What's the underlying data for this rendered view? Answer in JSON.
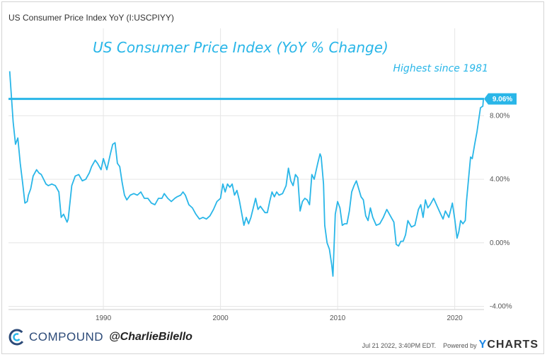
{
  "series_title": "US Consumer Price Index YoY (I:USCPIYY)",
  "footer": {
    "brand": "COMPOUND",
    "handle": "@CharlieBilello",
    "timestamp": "Jul 21 2022, 3:40PM EDT.",
    "powered_by": "Powered by",
    "ycharts_y": "Y",
    "ycharts_rest": "CHARTS"
  },
  "colors": {
    "line": "#29b6e8",
    "annotation": "#29b6e8",
    "axis_text": "#555555",
    "grid": "#e6e6e6",
    "brand": "#2c4a78"
  },
  "chart_data": {
    "type": "line",
    "title": "US Consumer Price Index (YoY % Change)",
    "annotation": "Highest since 1981",
    "reference_line": {
      "y": 9.06,
      "label": "9.06%"
    },
    "xlim": [
      1981.9,
      2022.5
    ],
    "ylim": [
      -4.2,
      13.5
    ],
    "x_ticks": [
      1990,
      2000,
      2010,
      2020
    ],
    "x_tick_labels": [
      "1990",
      "2000",
      "2010",
      "2020"
    ],
    "y_ticks": [
      8,
      4,
      0,
      -4
    ],
    "y_tick_labels": [
      "8.00%",
      "4.00%",
      "0.00%",
      "-4.00%"
    ],
    "grid": true,
    "series": [
      {
        "x": [
          1982.0,
          1982.3,
          1982.5,
          1982.7,
          1982.9,
          1983.1,
          1983.3,
          1983.5,
          1983.6,
          1983.8,
          1984.0,
          1984.3,
          1984.5,
          1984.7,
          1984.9,
          1985.1,
          1985.3,
          1985.6,
          1985.9,
          1986.2,
          1986.4,
          1986.6,
          1986.9,
          1987.0,
          1987.3,
          1987.6,
          1987.9,
          1988.2,
          1988.5,
          1988.8,
          1989.0,
          1989.3,
          1989.5,
          1989.8,
          1990.0,
          1990.3,
          1990.6,
          1990.8,
          1991.0,
          1991.2,
          1991.4,
          1991.6,
          1991.8,
          1992.0,
          1992.3,
          1992.6,
          1992.9,
          1993.2,
          1993.5,
          1993.8,
          1994.1,
          1994.4,
          1994.7,
          1995.0,
          1995.2,
          1995.5,
          1995.8,
          1996.1,
          1996.3,
          1996.6,
          1996.8,
          1997.0,
          1997.3,
          1997.6,
          1997.9,
          1998.2,
          1998.5,
          1998.8,
          1999.1,
          1999.4,
          1999.7,
          2000.0,
          2000.2,
          2000.4,
          2000.6,
          2000.8,
          2001.0,
          2001.2,
          2001.4,
          2001.6,
          2001.8,
          2002.0,
          2002.2,
          2002.4,
          2002.6,
          2002.8,
          2003.0,
          2003.2,
          2003.4,
          2003.6,
          2003.8,
          2004.0,
          2004.2,
          2004.4,
          2004.6,
          2004.8,
          2005.0,
          2005.3,
          2005.6,
          2005.8,
          2006.0,
          2006.2,
          2006.4,
          2006.6,
          2006.8,
          2007.0,
          2007.2,
          2007.4,
          2007.6,
          2007.8,
          2008.0,
          2008.3,
          2008.5,
          2008.6,
          2008.8,
          2008.9,
          2009.1,
          2009.3,
          2009.5,
          2009.6,
          2009.8,
          2010.0,
          2010.2,
          2010.4,
          2010.6,
          2010.8,
          2011.0,
          2011.2,
          2011.4,
          2011.6,
          2011.8,
          2012.0,
          2012.2,
          2012.4,
          2012.6,
          2012.8,
          2013.0,
          2013.3,
          2013.6,
          2013.9,
          2014.2,
          2014.5,
          2014.8,
          2015.0,
          2015.2,
          2015.4,
          2015.6,
          2015.8,
          2016.0,
          2016.3,
          2016.6,
          2016.9,
          2017.1,
          2017.3,
          2017.5,
          2017.7,
          2017.9,
          2018.2,
          2018.5,
          2018.8,
          2019.0,
          2019.2,
          2019.5,
          2019.8,
          2020.0,
          2020.2,
          2020.35,
          2020.5,
          2020.7,
          2020.9,
          2021.0,
          2021.2,
          2021.35,
          2021.5,
          2021.7,
          2021.9,
          2022.0,
          2022.2,
          2022.4,
          2022.45
        ],
        "values": [
          10.8,
          7.6,
          6.2,
          6.6,
          5.0,
          3.8,
          2.5,
          2.6,
          3.0,
          3.4,
          4.2,
          4.6,
          4.4,
          4.3,
          4.0,
          3.7,
          3.6,
          3.7,
          3.6,
          3.2,
          1.6,
          1.8,
          1.3,
          1.5,
          3.6,
          4.2,
          4.3,
          3.9,
          4.0,
          4.4,
          4.8,
          5.2,
          5.0,
          4.6,
          5.3,
          4.6,
          5.6,
          6.2,
          6.3,
          5.0,
          4.8,
          3.8,
          3.0,
          2.7,
          3.0,
          3.1,
          3.0,
          3.2,
          2.8,
          2.8,
          2.5,
          2.4,
          2.8,
          2.8,
          3.1,
          2.8,
          2.6,
          2.8,
          2.9,
          3.0,
          3.2,
          3.0,
          2.4,
          2.2,
          1.8,
          1.5,
          1.6,
          1.5,
          1.7,
          2.1,
          2.6,
          2.8,
          3.7,
          3.2,
          3.7,
          3.5,
          3.7,
          3.0,
          3.3,
          2.7,
          1.9,
          1.1,
          1.6,
          1.2,
          1.6,
          2.2,
          2.8,
          2.1,
          2.3,
          2.1,
          1.9,
          1.9,
          2.6,
          3.2,
          2.9,
          3.2,
          3.0,
          3.1,
          3.6,
          4.7,
          3.9,
          3.6,
          4.3,
          4.1,
          2.0,
          2.6,
          2.8,
          2.7,
          2.4,
          4.3,
          4.0,
          5.0,
          5.6,
          5.4,
          3.7,
          1.1,
          0.0,
          -0.4,
          -1.4,
          -2.1,
          1.8,
          2.6,
          2.2,
          1.1,
          1.2,
          1.2,
          2.0,
          3.2,
          3.6,
          3.9,
          3.4,
          2.9,
          2.7,
          1.7,
          1.4,
          2.2,
          1.6,
          1.1,
          1.2,
          1.6,
          2.1,
          1.7,
          1.3,
          -0.1,
          -0.2,
          0.1,
          0.1,
          0.5,
          1.4,
          1.0,
          1.1,
          2.1,
          2.4,
          1.6,
          2.7,
          2.2,
          2.4,
          2.8,
          2.3,
          1.8,
          1.5,
          2.0,
          1.6,
          2.5,
          1.5,
          0.3,
          0.7,
          1.4,
          1.2,
          1.4,
          2.6,
          4.2,
          5.4,
          5.3,
          6.2,
          7.0,
          7.5,
          8.5,
          8.6,
          9.06
        ]
      }
    ]
  }
}
